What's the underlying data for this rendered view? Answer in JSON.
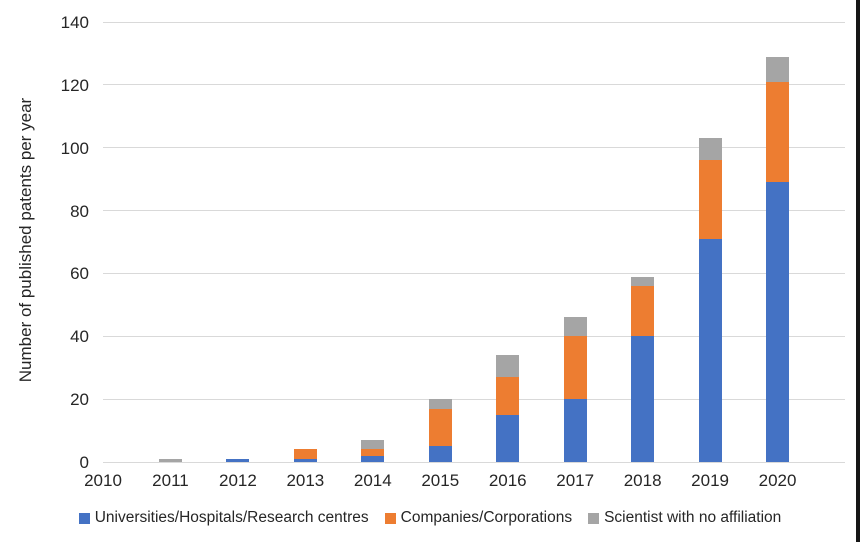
{
  "chart_data": {
    "type": "bar",
    "stacked": true,
    "title": "",
    "xlabel": "",
    "ylabel": "Number of published patents per year",
    "categories": [
      "2010",
      "2011",
      "2012",
      "2013",
      "2014",
      "2015",
      "2016",
      "2017",
      "2018",
      "2019",
      "2020"
    ],
    "series": [
      {
        "name": "Universities/Hospitals/Research centres",
        "color": "#4472C4",
        "values": [
          0,
          0,
          1,
          1,
          2,
          5,
          15,
          20,
          40,
          71,
          89
        ]
      },
      {
        "name": "Companies/Corporations",
        "color": "#ED7D31",
        "values": [
          0,
          0,
          0,
          3,
          2,
          12,
          12,
          20,
          16,
          25,
          32
        ]
      },
      {
        "name": "Scientist with no affiliation",
        "color": "#A5A5A5",
        "values": [
          0,
          1,
          0,
          0,
          3,
          3,
          7,
          6,
          3,
          7,
          8
        ]
      }
    ],
    "totals_per_year": [
      0,
      1,
      1,
      4,
      7,
      20,
      34,
      46,
      59,
      103,
      129
    ],
    "ylim": [
      0,
      140
    ],
    "ytick_step": 20,
    "yticks": [
      "0",
      "20",
      "40",
      "60",
      "80",
      "100",
      "120",
      "140"
    ],
    "grid": true,
    "legend_position": "bottom",
    "gridline_color": "#d9d9d9",
    "text_color": "#262626"
  }
}
